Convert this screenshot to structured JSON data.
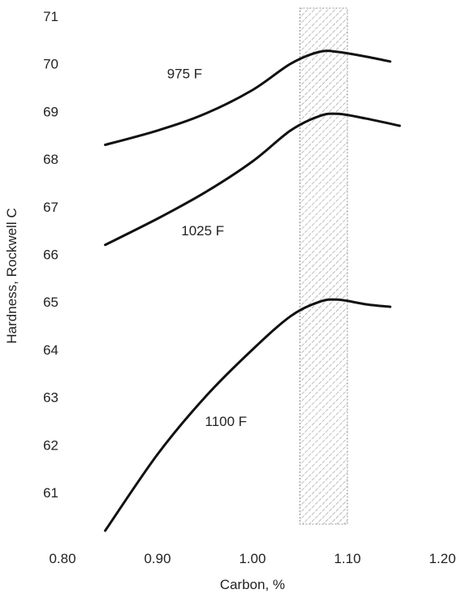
{
  "chart_data": {
    "type": "line",
    "title": "",
    "xlabel": "Carbon, %",
    "ylabel": "Hardness, Rockwell C",
    "xlim": [
      0.8,
      1.2
    ],
    "ylim": [
      60.2,
      71
    ],
    "x_ticks": [
      "0.80",
      "0.90",
      "1.00",
      "1.10",
      "1.20"
    ],
    "y_ticks": [
      "61",
      "62",
      "63",
      "64",
      "65",
      "66",
      "67",
      "68",
      "69",
      "70",
      "71"
    ],
    "grid": false,
    "legend": "none",
    "shaded_band": {
      "x_start": 1.05,
      "x_end": 1.1
    },
    "series": [
      {
        "name": "975 F",
        "label_position": {
          "x": 0.91,
          "y": 69.7
        },
        "x": [
          0.845,
          0.9,
          0.95,
          1.0,
          1.04,
          1.07,
          1.09,
          1.12,
          1.145
        ],
        "y": [
          68.3,
          68.6,
          68.95,
          69.45,
          70.0,
          70.25,
          70.25,
          70.15,
          70.05
        ]
      },
      {
        "name": "1025 F",
        "label_position": {
          "x": 0.925,
          "y": 66.4
        },
        "x": [
          0.845,
          0.9,
          0.95,
          1.0,
          1.04,
          1.07,
          1.09,
          1.12,
          1.155
        ],
        "y": [
          66.2,
          66.75,
          67.3,
          67.95,
          68.6,
          68.9,
          68.95,
          68.85,
          68.7
        ]
      },
      {
        "name": "1100 F",
        "label_position": {
          "x": 0.95,
          "y": 62.4
        },
        "x": [
          0.845,
          0.9,
          0.95,
          1.0,
          1.04,
          1.07,
          1.09,
          1.12,
          1.145
        ],
        "y": [
          60.2,
          61.8,
          63.0,
          64.0,
          64.7,
          65.0,
          65.05,
          64.95,
          64.9
        ]
      }
    ]
  }
}
